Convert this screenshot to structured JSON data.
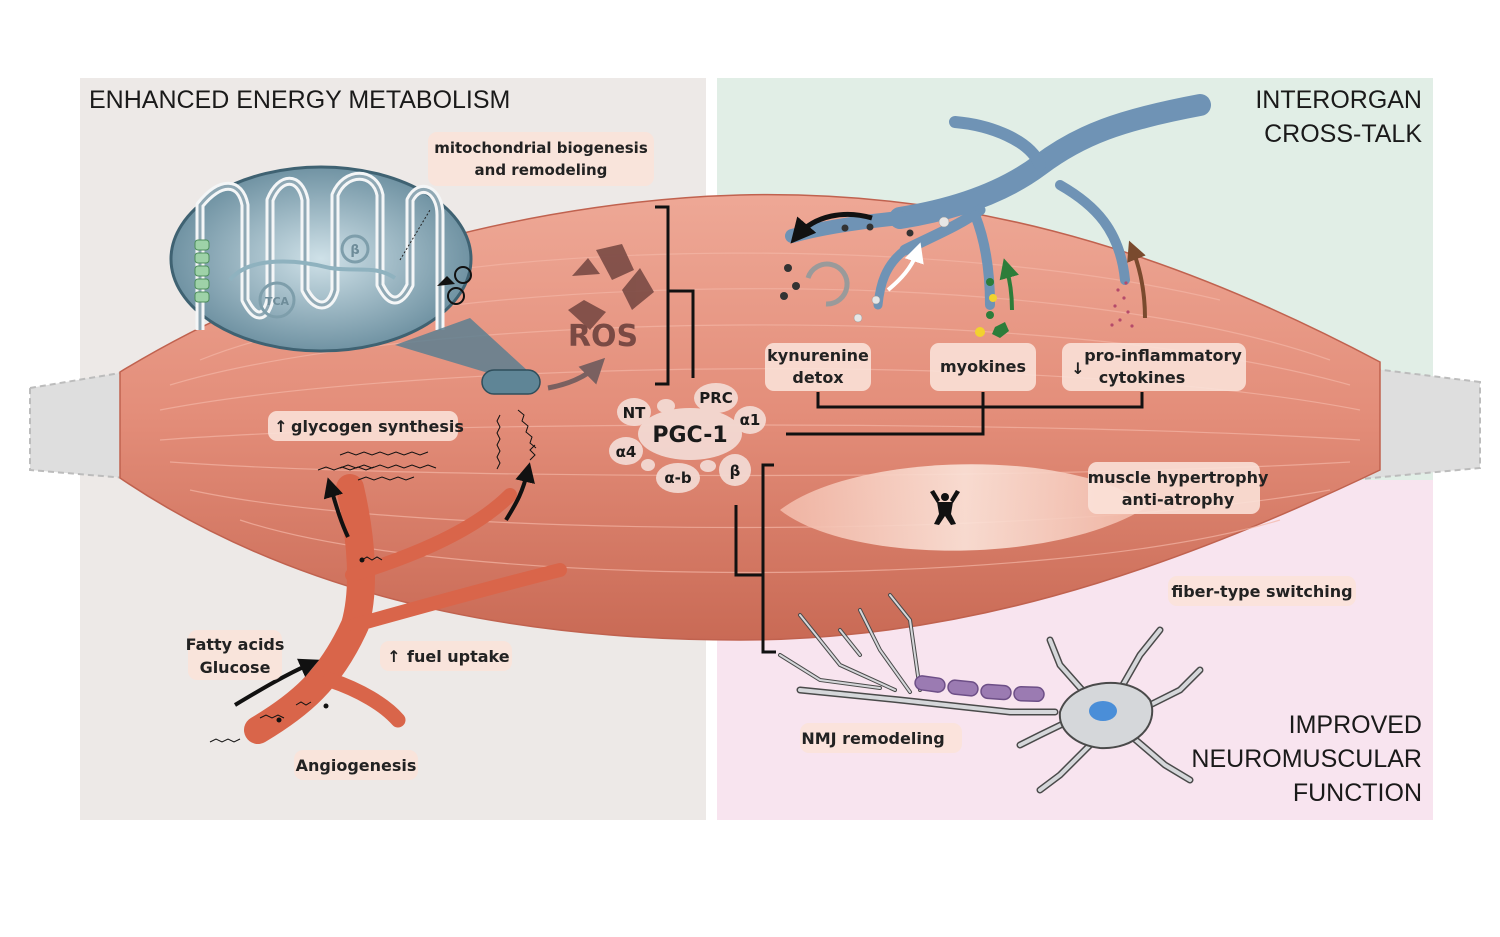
{
  "panels": {
    "energy": "ENHANCED ENERGY METABOLISM",
    "crosstalk_1": "INTERORGAN",
    "crosstalk_2": "CROSS-TALK",
    "neuro_1": "IMPROVED",
    "neuro_2": "NEUROMUSCULAR",
    "neuro_3": "FUNCTION"
  },
  "center": {
    "title": "PGC-1",
    "isoforms": {
      "nt": "NT",
      "prc": "PRC",
      "a1": "α1",
      "a4": "α4",
      "ab": "α-b",
      "b": "β"
    }
  },
  "labels": {
    "mito_1": "mitochondrial biogenesis",
    "mito_2": "and remodeling",
    "ros": "ROS",
    "tca": "TCA",
    "beta": "β",
    "glycogen": "glycogen synthesis",
    "fatty": "Fatty acids",
    "glucose": "Glucose",
    "fuel": "fuel uptake",
    "angio": "Angiogenesis",
    "kyn_1": "kynurenine",
    "kyn_2": "detox",
    "myokines": "myokines",
    "cyto_1": "pro-inflammatory",
    "cyto_2": "cytokines",
    "hyper_1": "muscle hypertrophy",
    "hyper_2": "anti-atrophy",
    "fiber": "fiber-type switching",
    "nmj": "NMJ remodeling"
  },
  "colors": {
    "panel_energy": "#ede9e7",
    "panel_crosstalk": "#e1eee6",
    "panel_neuro": "#f8e4ef",
    "muscle": "#e48c78",
    "vessel_blue": "#6f93b5",
    "vessel_red": "#d9654a",
    "neuron": "#d5d7da",
    "myelin": "#9b7bb2"
  }
}
